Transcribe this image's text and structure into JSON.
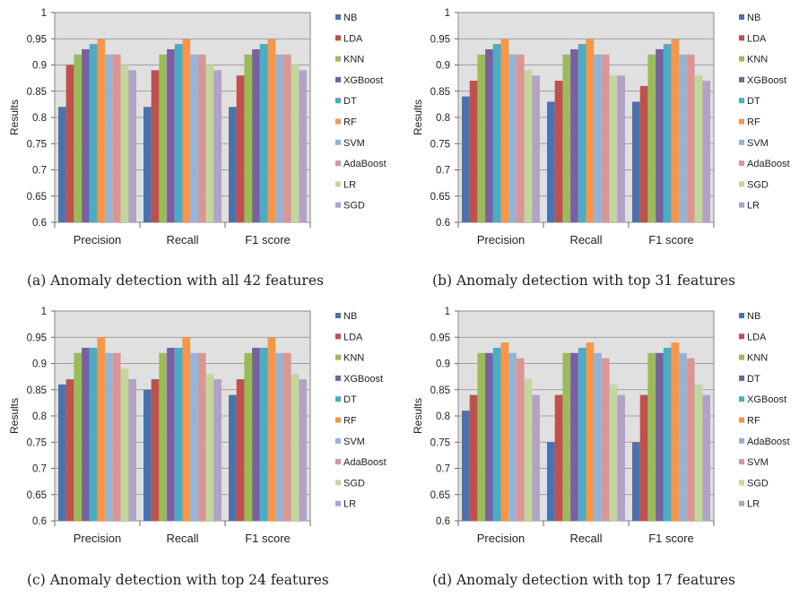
{
  "chart_data": [
    {
      "type": "bar",
      "caption": "(a) Anomaly detection with all 42 features",
      "ylabel": "Results",
      "ylim": [
        0.6,
        1
      ],
      "yticks": [
        "0.6",
        "0.65",
        "0.7",
        "0.75",
        "0.8",
        "0.85",
        "0.9",
        "0.95",
        "1"
      ],
      "categories": [
        "Precision",
        "Recall",
        "F1 score"
      ],
      "legend_position": "right",
      "series": [
        {
          "name": "NB",
          "color": "#4a72b0",
          "values": [
            0.82,
            0.82,
            0.82
          ]
        },
        {
          "name": "LDA",
          "color": "#c0504d",
          "values": [
            0.9,
            0.89,
            0.88
          ]
        },
        {
          "name": "KNN",
          "color": "#9bbb59",
          "values": [
            0.92,
            0.92,
            0.92
          ]
        },
        {
          "name": "XGBoost",
          "color": "#7b5fa3",
          "values": [
            0.93,
            0.93,
            0.93
          ]
        },
        {
          "name": "DT",
          "color": "#4bacc6",
          "values": [
            0.94,
            0.94,
            0.94
          ]
        },
        {
          "name": "RF",
          "color": "#f79646",
          "values": [
            0.95,
            0.95,
            0.95
          ]
        },
        {
          "name": "SVM",
          "color": "#95b3d7",
          "values": [
            0.92,
            0.92,
            0.92
          ]
        },
        {
          "name": "AdaBoost",
          "color": "#d99694",
          "values": [
            0.92,
            0.92,
            0.92
          ]
        },
        {
          "name": "LR",
          "color": "#c3d69b",
          "values": [
            0.9,
            0.9,
            0.9
          ]
        },
        {
          "name": "SGD",
          "color": "#b3a2c7",
          "values": [
            0.89,
            0.89,
            0.89
          ]
        }
      ]
    },
    {
      "type": "bar",
      "caption": "(b) Anomaly detection with top 31 features",
      "ylabel": "Results",
      "ylim": [
        0.6,
        1
      ],
      "yticks": [
        "0.6",
        "0.65",
        "0.7",
        "0.75",
        "0.8",
        "0.85",
        "0.9",
        "0.95",
        "1"
      ],
      "categories": [
        "Precision",
        "Recall",
        "F1 score"
      ],
      "legend_position": "right",
      "series": [
        {
          "name": "NB",
          "color": "#4a72b0",
          "values": [
            0.84,
            0.83,
            0.83
          ]
        },
        {
          "name": "LDA",
          "color": "#c0504d",
          "values": [
            0.87,
            0.87,
            0.86
          ]
        },
        {
          "name": "KNN",
          "color": "#9bbb59",
          "values": [
            0.92,
            0.92,
            0.92
          ]
        },
        {
          "name": "XGBoost",
          "color": "#7b5fa3",
          "values": [
            0.93,
            0.93,
            0.93
          ]
        },
        {
          "name": "DT",
          "color": "#4bacc6",
          "values": [
            0.94,
            0.94,
            0.94
          ]
        },
        {
          "name": "RF",
          "color": "#f79646",
          "values": [
            0.95,
            0.95,
            0.95
          ]
        },
        {
          "name": "SVM",
          "color": "#95b3d7",
          "values": [
            0.92,
            0.92,
            0.92
          ]
        },
        {
          "name": "AdaBoost",
          "color": "#d99694",
          "values": [
            0.92,
            0.92,
            0.92
          ]
        },
        {
          "name": "SGD",
          "color": "#c3d69b",
          "values": [
            0.89,
            0.88,
            0.88
          ]
        },
        {
          "name": "LR",
          "color": "#b3a2c7",
          "values": [
            0.88,
            0.88,
            0.87
          ]
        }
      ]
    },
    {
      "type": "bar",
      "caption": "(c) Anomaly detection with top 24 features",
      "ylabel": "Results",
      "ylim": [
        0.6,
        1
      ],
      "yticks": [
        "0.6",
        "0.65",
        "0.7",
        "0.75",
        "0.8",
        "0.85",
        "0.9",
        "0.95",
        "1"
      ],
      "categories": [
        "Precision",
        "Recall",
        "F1 score"
      ],
      "legend_position": "right",
      "series": [
        {
          "name": "NB",
          "color": "#4a72b0",
          "values": [
            0.86,
            0.85,
            0.84
          ]
        },
        {
          "name": "LDA",
          "color": "#c0504d",
          "values": [
            0.87,
            0.87,
            0.87
          ]
        },
        {
          "name": "KNN",
          "color": "#9bbb59",
          "values": [
            0.92,
            0.92,
            0.92
          ]
        },
        {
          "name": "XGBoost",
          "color": "#7b5fa3",
          "values": [
            0.93,
            0.93,
            0.93
          ]
        },
        {
          "name": "DT",
          "color": "#4bacc6",
          "values": [
            0.93,
            0.93,
            0.93
          ]
        },
        {
          "name": "RF",
          "color": "#f79646",
          "values": [
            0.95,
            0.95,
            0.95
          ]
        },
        {
          "name": "SVM",
          "color": "#95b3d7",
          "values": [
            0.92,
            0.92,
            0.92
          ]
        },
        {
          "name": "AdaBoost",
          "color": "#d99694",
          "values": [
            0.92,
            0.92,
            0.92
          ]
        },
        {
          "name": "SGD",
          "color": "#c3d69b",
          "values": [
            0.89,
            0.88,
            0.88
          ]
        },
        {
          "name": "LR",
          "color": "#b3a2c7",
          "values": [
            0.87,
            0.87,
            0.87
          ]
        }
      ]
    },
    {
      "type": "bar",
      "caption": "(d) Anomaly detection with top 17 features",
      "ylabel": "Results",
      "ylim": [
        0.6,
        1
      ],
      "yticks": [
        "0.6",
        "0.65",
        "0.7",
        "0.75",
        "0.8",
        "0.85",
        "0.9",
        "0.95",
        "1"
      ],
      "categories": [
        "Precision",
        "Recall",
        "F1 score"
      ],
      "legend_position": "right",
      "series": [
        {
          "name": "NB",
          "color": "#4a72b0",
          "values": [
            0.81,
            0.75,
            0.75
          ]
        },
        {
          "name": "LDA",
          "color": "#c0504d",
          "values": [
            0.84,
            0.84,
            0.84
          ]
        },
        {
          "name": "KNN",
          "color": "#9bbb59",
          "values": [
            0.92,
            0.92,
            0.92
          ]
        },
        {
          "name": "DT",
          "color": "#7b5fa3",
          "values": [
            0.92,
            0.92,
            0.92
          ]
        },
        {
          "name": "XGBoost",
          "color": "#4bacc6",
          "values": [
            0.93,
            0.93,
            0.93
          ]
        },
        {
          "name": "RF",
          "color": "#f79646",
          "values": [
            0.94,
            0.94,
            0.94
          ]
        },
        {
          "name": "AdaBoost",
          "color": "#95b3d7",
          "values": [
            0.92,
            0.92,
            0.92
          ]
        },
        {
          "name": "SVM",
          "color": "#d99694",
          "values": [
            0.91,
            0.91,
            0.91
          ]
        },
        {
          "name": "SGD",
          "color": "#c3d69b",
          "values": [
            0.87,
            0.86,
            0.86
          ]
        },
        {
          "name": "LR",
          "color": "#b3a2c7",
          "values": [
            0.84,
            0.84,
            0.84
          ]
        }
      ]
    }
  ]
}
